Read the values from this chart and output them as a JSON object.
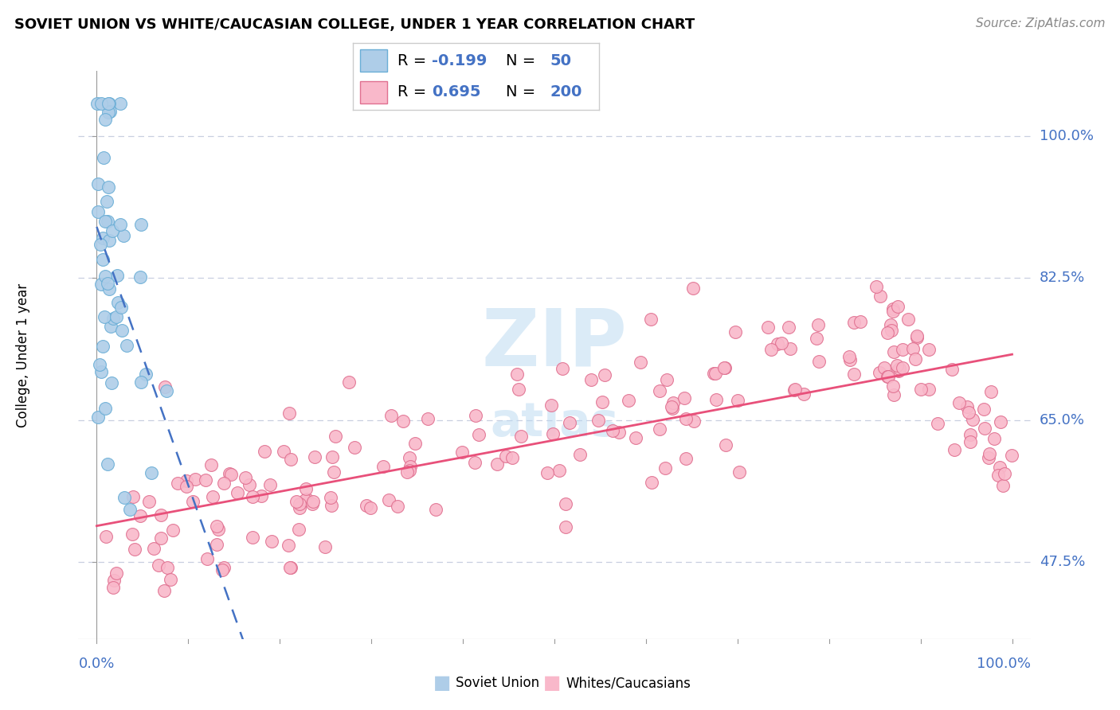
{
  "title": "SOVIET UNION VS WHITE/CAUCASIAN COLLEGE, UNDER 1 YEAR CORRELATION CHART",
  "source": "Source: ZipAtlas.com",
  "ylabel": "College, Under 1 year",
  "y_ticks": [
    47.5,
    65.0,
    82.5,
    100.0
  ],
  "y_tick_labels": [
    "47.5%",
    "65.0%",
    "82.5%",
    "100.0%"
  ],
  "x_range": [
    0.0,
    100.0
  ],
  "y_range": [
    38.0,
    108.0
  ],
  "blue_color": "#aecde8",
  "blue_edge": "#6aaed6",
  "pink_color": "#f9b8ca",
  "pink_edge": "#e07090",
  "pink_line_color": "#e8507a",
  "blue_line_color": "#4472c4",
  "grid_color": "#c8cfe0",
  "axis_color": "#888888",
  "label_color": "#4472c4",
  "watermark_color": "#b8d8f0",
  "title_fontsize": 13,
  "source_fontsize": 11,
  "tick_label_fontsize": 13,
  "legend_fontsize": 14
}
